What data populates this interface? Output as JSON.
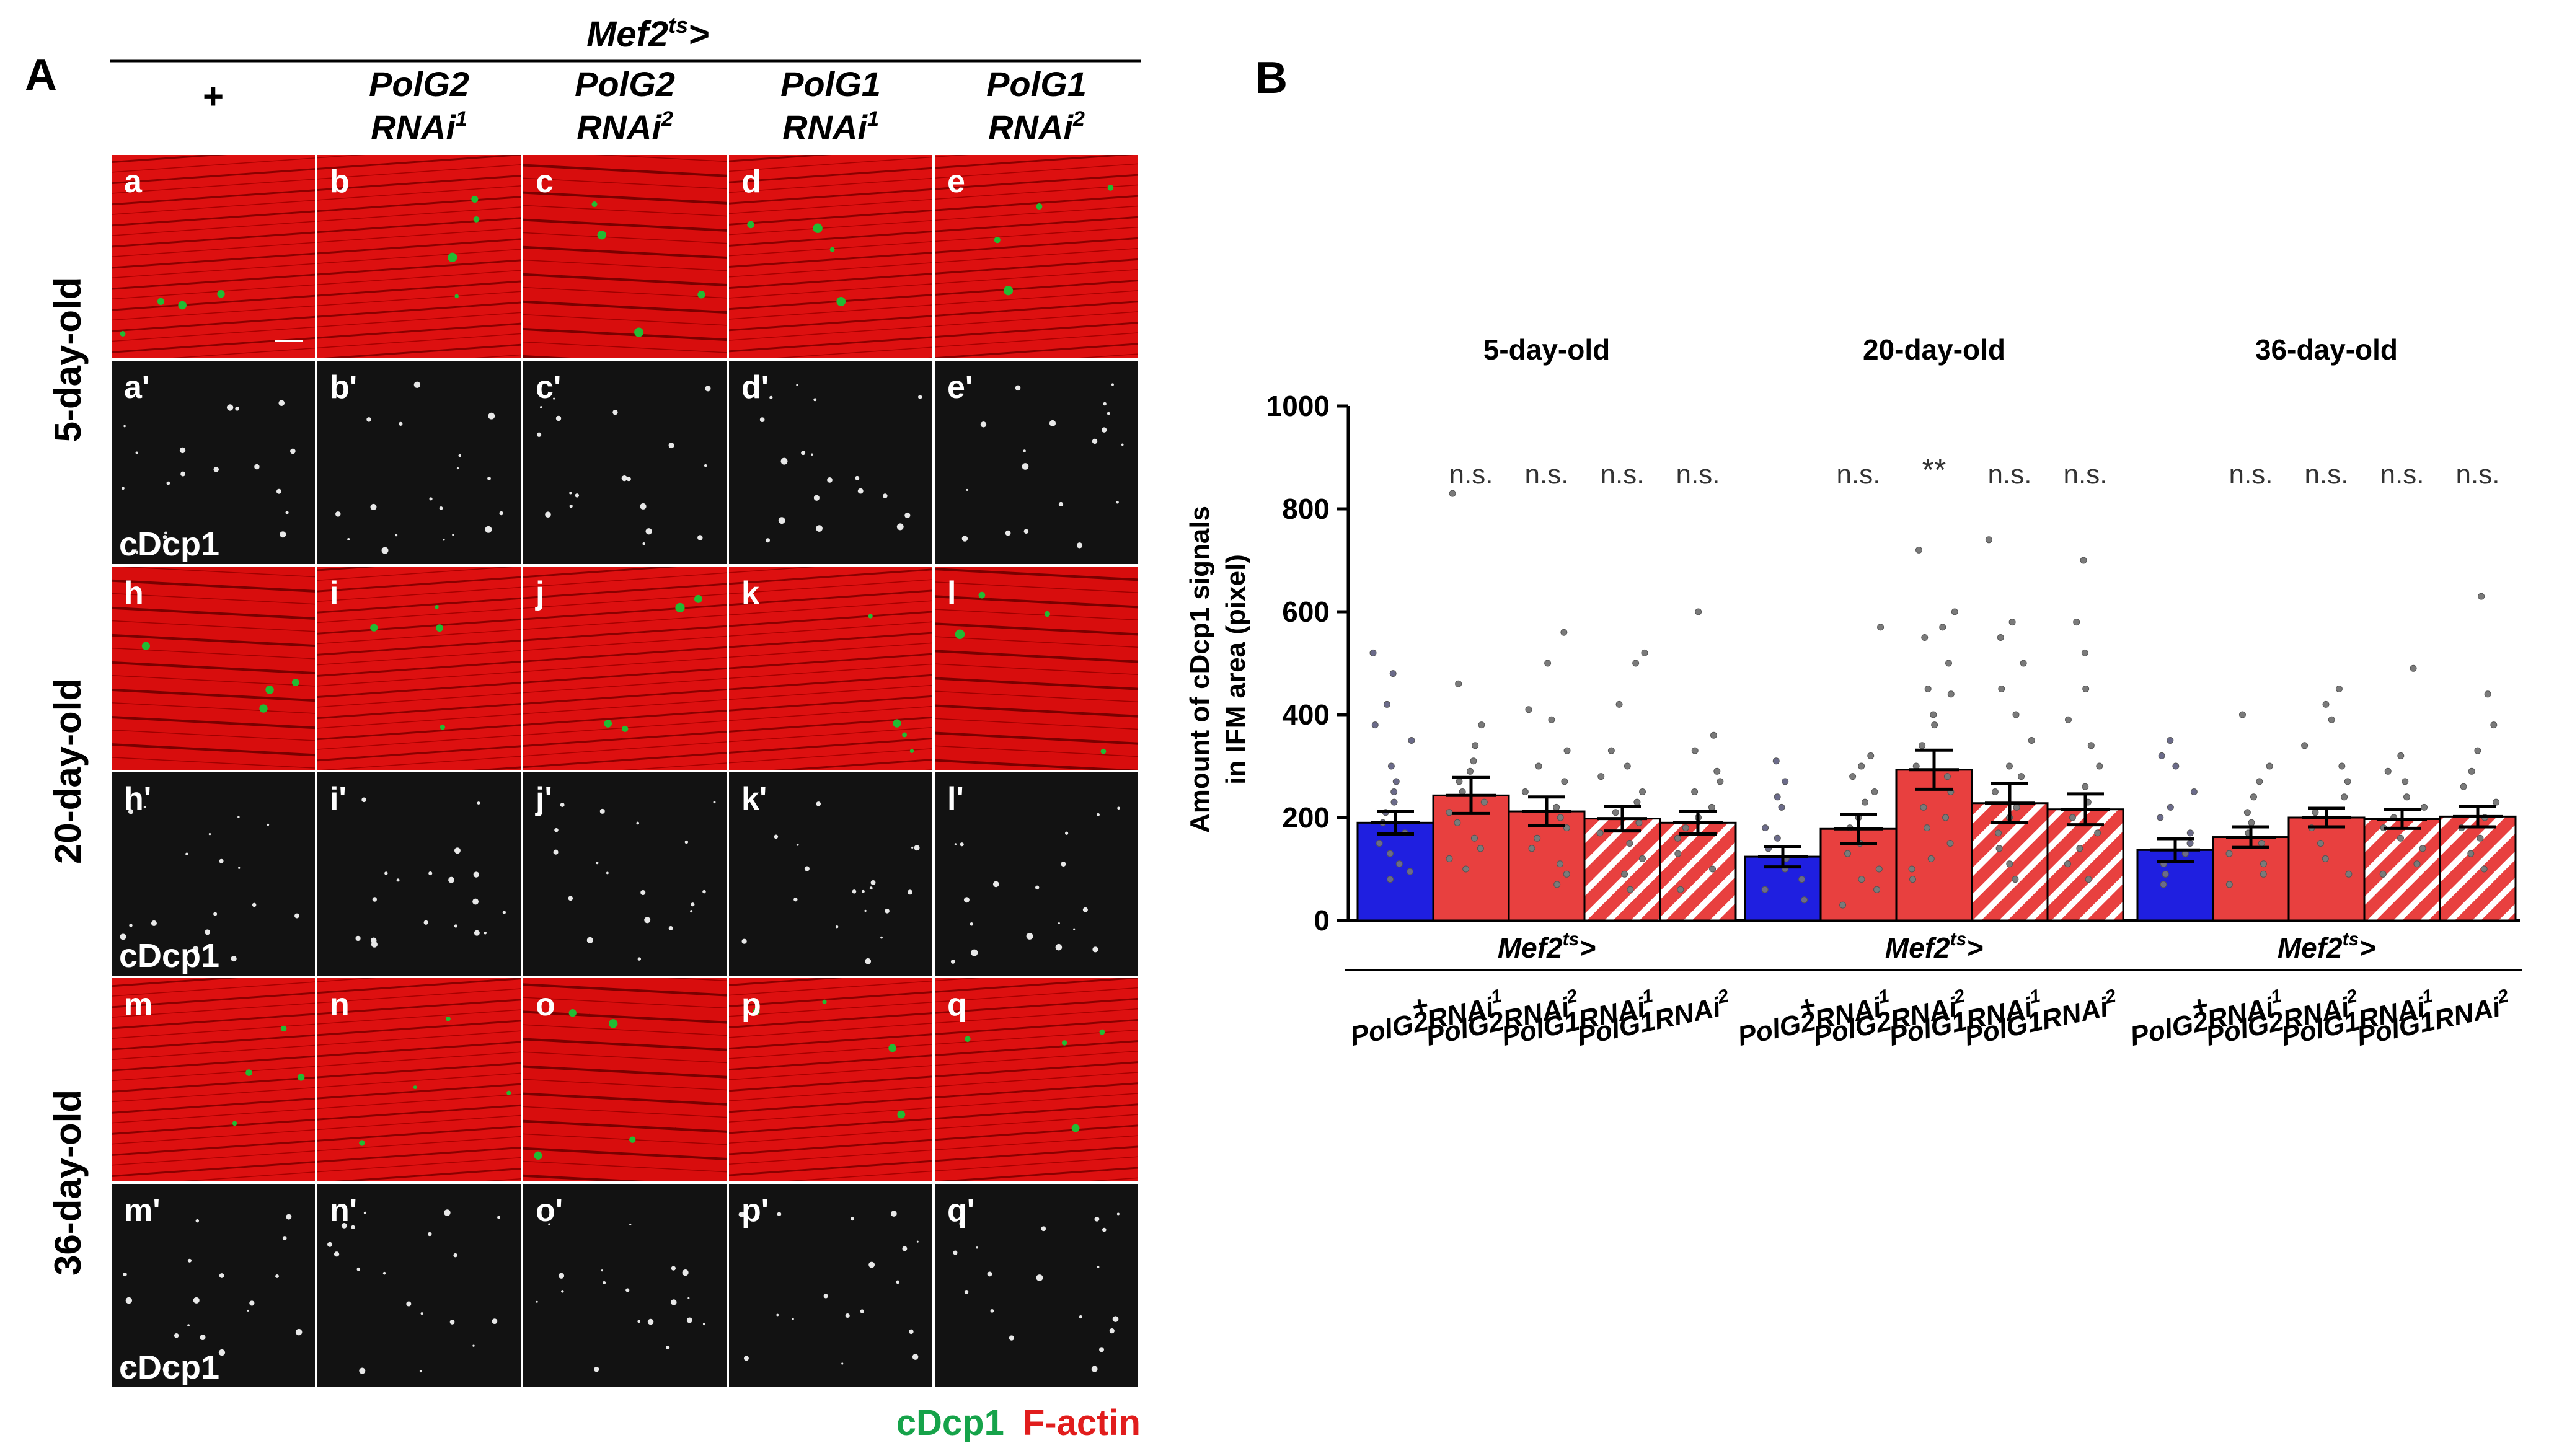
{
  "panel_a": {
    "label": "A",
    "genotype": {
      "base": "Mef2",
      "sup": "ts",
      "suffix": ">"
    },
    "columns": [
      {
        "line1": "+",
        "line2": "",
        "sup": ""
      },
      {
        "line1": "PolG2",
        "line2": "RNAi",
        "sup": "1"
      },
      {
        "line1": "PolG2",
        "line2": "RNAi",
        "sup": "2"
      },
      {
        "line1": "PolG1",
        "line2": "RNAi",
        "sup": "1"
      },
      {
        "line1": "PolG1",
        "line2": "RNAi",
        "sup": "2"
      }
    ],
    "ages": [
      "5-day-old",
      "20-day-old",
      "36-day-old"
    ],
    "tile_labels": [
      [
        "a",
        "b",
        "c",
        "d",
        "e"
      ],
      [
        "a'",
        "b'",
        "c'",
        "d'",
        "e'"
      ],
      [
        "h",
        "i",
        "j",
        "k",
        "l"
      ],
      [
        "h'",
        "i'",
        "j'",
        "k'",
        "l'"
      ],
      [
        "m",
        "n",
        "o",
        "p",
        "q"
      ],
      [
        "m'",
        "n'",
        "o'",
        "p'",
        "q'"
      ]
    ],
    "channel_label": "cDcp1",
    "legend": {
      "green": "cDcp1",
      "red": "F-actin"
    },
    "colors": {
      "actin": "#dd1010",
      "actin_dark": "#8a0000",
      "cdcp1_green": "#22bb33",
      "legend_green": "#16a34a",
      "legend_red": "#e11d1d"
    }
  },
  "chart_data": {
    "type": "bar",
    "panel_label": "B",
    "ylabel": [
      "Amount of cDcp1 signals",
      "in IFM area (pixel)"
    ],
    "ylim": [
      0,
      1000
    ],
    "yticks": [
      0,
      200,
      400,
      600,
      800,
      1000
    ],
    "group_titles": [
      "5-day-old",
      "20-day-old",
      "36-day-old"
    ],
    "categories": [
      "+",
      "PolG2RNAi1",
      "PolG2RNAi2",
      "PolG1RNAi1",
      "PolG1RNAi2"
    ],
    "category_labels": [
      {
        "base": "+",
        "sup": ""
      },
      {
        "base": "PolG2RNAi",
        "sup": "1"
      },
      {
        "base": "PolG2RNAi",
        "sup": "2"
      },
      {
        "base": "PolG1RNAi",
        "sup": "1"
      },
      {
        "base": "PolG1RNAi",
        "sup": "2"
      }
    ],
    "genotype": {
      "base": "Mef2",
      "sup": "ts",
      "suffix": ">"
    },
    "series": [
      {
        "name": "5-day-old",
        "values": [
          190,
          243,
          212,
          198,
          190
        ],
        "errors": [
          22,
          35,
          28,
          24,
          22
        ]
      },
      {
        "name": "20-day-old",
        "values": [
          124,
          178,
          293,
          228,
          216
        ],
        "errors": [
          20,
          28,
          38,
          38,
          30
        ]
      },
      {
        "name": "36-day-old",
        "values": [
          137,
          162,
          200,
          197,
          202
        ],
        "errors": [
          22,
          20,
          18,
          18,
          20
        ]
      }
    ],
    "significance": [
      [
        "",
        "n.s.",
        "n.s.",
        "n.s.",
        "n.s."
      ],
      [
        "",
        "n.s.",
        "**",
        "n.s.",
        "n.s."
      ],
      [
        "",
        "n.s.",
        "n.s.",
        "n.s.",
        "n.s."
      ]
    ],
    "bar_styles": [
      "solid-blue",
      "solid-red",
      "solid-red",
      "hatched-red",
      "hatched-red"
    ],
    "colors": {
      "control": "#1f1fe0",
      "rnai": "#e8403f",
      "hatch": "#ffffff"
    },
    "points": [
      [
        [
          520,
          480,
          420,
          380,
          350,
          300,
          270,
          250,
          230,
          210,
          190,
          170,
          150,
          130,
          110,
          95,
          80
        ],
        [
          830,
          460,
          380,
          340,
          310,
          290,
          270,
          250,
          230,
          210,
          190,
          160,
          140,
          120,
          100
        ],
        [
          560,
          500,
          410,
          390,
          330,
          300,
          270,
          250,
          220,
          200,
          180,
          160,
          140,
          110,
          90,
          70
        ],
        [
          520,
          500,
          420,
          330,
          300,
          280,
          250,
          230,
          210,
          190,
          170,
          150,
          120,
          90,
          60
        ],
        [
          600,
          360,
          330,
          290,
          270,
          250,
          220,
          200,
          180,
          160,
          130,
          100,
          60
        ]
      ],
      [
        [
          310,
          270,
          240,
          220,
          180,
          160,
          140,
          120,
          100,
          80,
          60,
          40
        ],
        [
          570,
          320,
          300,
          280,
          250,
          230,
          200,
          180,
          150,
          130,
          100,
          80,
          60,
          30
        ],
        [
          720,
          600,
          570,
          550,
          500,
          450,
          440,
          400,
          380,
          340,
          300,
          280,
          250,
          220,
          200,
          180,
          150,
          120,
          100,
          80
        ],
        [
          740,
          580,
          550,
          500,
          450,
          400,
          350,
          300,
          280,
          250,
          220,
          200,
          170,
          140,
          110,
          80
        ],
        [
          700,
          580,
          520,
          450,
          390,
          340,
          300,
          260,
          230,
          200,
          170,
          140,
          110,
          80
        ]
      ],
      [
        [
          350,
          320,
          300,
          250,
          220,
          200,
          170,
          150,
          130,
          110,
          90,
          70
        ],
        [
          400,
          300,
          270,
          240,
          210,
          190,
          170,
          150,
          130,
          110,
          90,
          70
        ],
        [
          450,
          420,
          390,
          340,
          300,
          270,
          240,
          210,
          180,
          150,
          120,
          90
        ],
        [
          490,
          320,
          290,
          270,
          240,
          220,
          200,
          180,
          160,
          140,
          110,
          90
        ],
        [
          630,
          440,
          380,
          330,
          290,
          260,
          230,
          200,
          180,
          160,
          130,
          100
        ]
      ]
    ]
  }
}
